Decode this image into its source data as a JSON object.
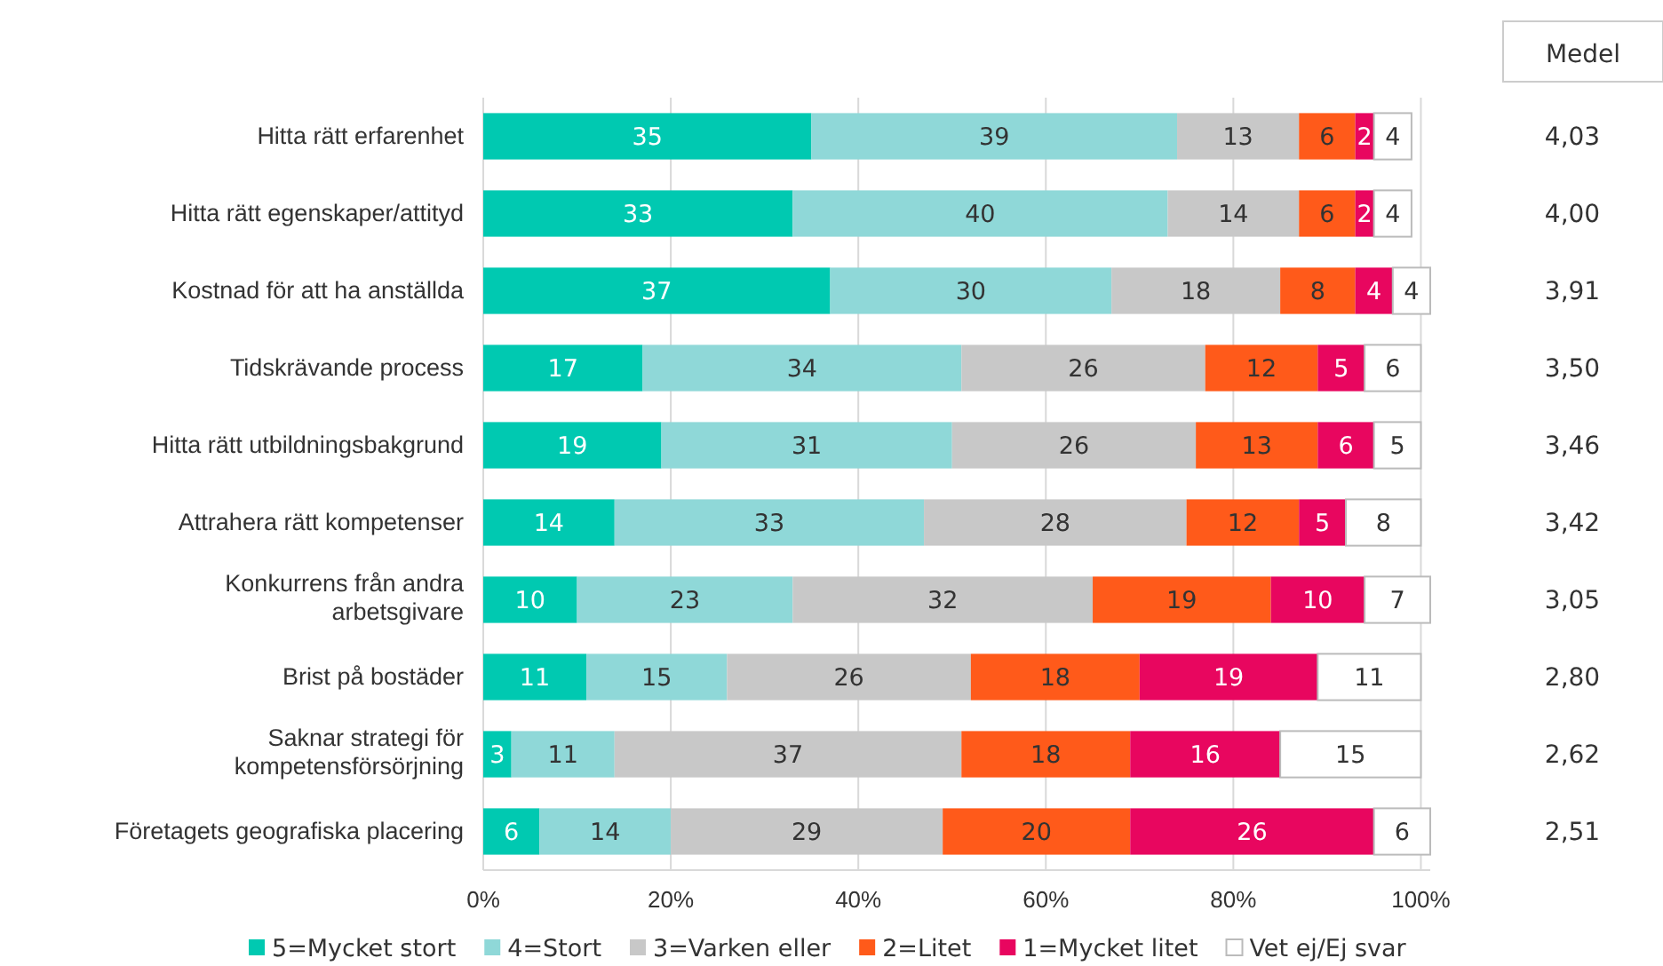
{
  "chart_data": {
    "type": "bar",
    "orientation": "horizontal",
    "stacked": true,
    "data_labels": true,
    "grid": "x",
    "legend": "bottom",
    "categories": [
      "Hitta rätt erfarenhet",
      "Hitta rätt egenskaper/attityd",
      "Kostnad för att ha anställda",
      "Tidskrävande process",
      "Hitta rätt utbildningsbakgrund",
      "Attrahera rätt kompetenser",
      "Konkurrens från andra arbetsgivare",
      "Brist på bostäder",
      "Saknar strategi för kompetensförsörjning",
      "Företagets geografiska placering"
    ],
    "series": [
      {
        "name": "5=Mycket stort",
        "color": "#00c9b1",
        "values": [
          35,
          33,
          37,
          17,
          19,
          14,
          10,
          11,
          3,
          6
        ]
      },
      {
        "name": "4=Stort",
        "color": "#8fd8d8",
        "values": [
          39,
          40,
          30,
          34,
          31,
          33,
          23,
          15,
          11,
          14
        ]
      },
      {
        "name": "3=Varken eller",
        "color": "#c8c8c8",
        "values": [
          13,
          14,
          18,
          26,
          26,
          28,
          32,
          26,
          37,
          29
        ]
      },
      {
        "name": "2=Litet",
        "color": "#ff5a1a",
        "values": [
          6,
          6,
          8,
          12,
          13,
          12,
          19,
          18,
          18,
          20
        ]
      },
      {
        "name": "1=Mycket litet",
        "color": "#e8065f",
        "values": [
          2,
          2,
          4,
          5,
          6,
          5,
          10,
          19,
          16,
          26
        ]
      },
      {
        "name": "Vet ej/Ej svar",
        "color": "#ffffff",
        "values": [
          4,
          4,
          4,
          6,
          5,
          8,
          7,
          11,
          15,
          6
        ]
      }
    ],
    "xlim": [
      0,
      101
    ],
    "xticks": [
      {
        "value": 0,
        "label": "0%"
      },
      {
        "value": 20,
        "label": "20%"
      },
      {
        "value": 40,
        "label": "40%"
      },
      {
        "value": 60,
        "label": "60%"
      },
      {
        "value": 80,
        "label": "80%"
      },
      {
        "value": 100,
        "label": "100%"
      }
    ],
    "annotations": [
      "Medel",
      "4,03",
      "4,00",
      "3,91",
      "3,50",
      "3,46",
      "3,42",
      "3,05",
      "2,80",
      "2,62",
      "2,51"
    ]
  }
}
